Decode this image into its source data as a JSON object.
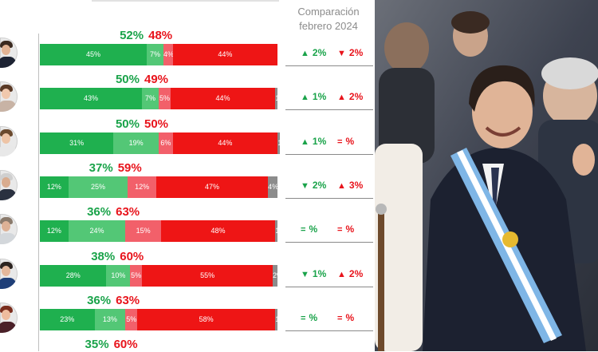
{
  "comparison_header": {
    "line1": "Comparación",
    "line2": "febrero 2024"
  },
  "colors": {
    "positive_dark": "#1fb04f",
    "positive_light": "#53c776",
    "negative_light": "#f2606a",
    "negative_dark": "#ee1515",
    "no_answer": "#8c8c8c",
    "green_text": "#1aa34a",
    "red_text": "#e8141c"
  },
  "chart_data": {
    "type": "bar",
    "orientation": "horizontal",
    "stacked": true,
    "xlim": [
      0,
      100
    ],
    "grid": false,
    "categories": [
      "",
      "",
      "",
      "",
      "",
      "",
      "",
      ""
    ],
    "segments": [
      {
        "key": "positive_dark",
        "values": [
          45,
          43,
          31,
          12,
          12,
          28,
          23,
          null
        ]
      },
      {
        "key": "positive_light",
        "values": [
          7,
          7,
          19,
          25,
          24,
          10,
          13,
          null
        ]
      },
      {
        "key": "negative_light",
        "values": [
          4,
          5,
          6,
          12,
          15,
          5,
          5,
          null
        ]
      },
      {
        "key": "negative_dark",
        "values": [
          44,
          44,
          44,
          47,
          48,
          55,
          58,
          null
        ]
      },
      {
        "key": "no_answer",
        "values": [
          0,
          1,
          1,
          4,
          1,
          2,
          1,
          null
        ]
      }
    ],
    "segment_label_suffixes": [
      [
        "%",
        "%",
        "%",
        "%",
        "%"
      ],
      [
        "%",
        "%",
        "%",
        "%",
        "1"
      ],
      [
        "%",
        "%",
        "%",
        "%",
        "1"
      ],
      [
        "%",
        "%",
        "%",
        "%",
        "%"
      ],
      [
        "%",
        "%",
        "%",
        "%",
        "1"
      ],
      [
        "%",
        "%",
        "%",
        "%",
        "%"
      ],
      [
        "%",
        "%",
        "%",
        "%",
        "1"
      ],
      [
        "",
        "",
        "",
        "",
        ""
      ]
    ],
    "positive_totals": [
      52,
      50,
      50,
      37,
      36,
      38,
      36,
      35
    ],
    "negative_totals": [
      48,
      49,
      50,
      59,
      63,
      60,
      63,
      60
    ],
    "comparison": [
      {
        "positive": {
          "dir": "up",
          "value": "2%"
        },
        "negative": {
          "dir": "down",
          "value": "2%"
        }
      },
      {
        "positive": {
          "dir": "up",
          "value": "1%"
        },
        "negative": {
          "dir": "up",
          "value": "2%"
        }
      },
      {
        "positive": {
          "dir": "up",
          "value": "1%"
        },
        "negative": {
          "dir": "equal",
          "value": "%"
        }
      },
      {
        "positive": {
          "dir": "down",
          "value": "2%"
        },
        "negative": {
          "dir": "up",
          "value": "3%"
        }
      },
      {
        "positive": {
          "dir": "equal",
          "value": "%"
        },
        "negative": {
          "dir": "equal",
          "value": "%"
        }
      },
      {
        "positive": {
          "dir": "down",
          "value": "1%"
        },
        "negative": {
          "dir": "up",
          "value": "2%"
        }
      },
      {
        "positive": {
          "dir": "equal",
          "value": "%"
        },
        "negative": {
          "dir": "equal",
          "value": "%"
        }
      }
    ]
  },
  "avatars": [
    {
      "name": "avatar-1",
      "skin": "#e2b394",
      "hair": "#3b2a20",
      "body": "#1d2333"
    },
    {
      "name": "avatar-2",
      "skin": "#f0c8ad",
      "hair": "#5a3a26",
      "body": "#c8b3a5"
    },
    {
      "name": "avatar-3",
      "skin": "#eec4a6",
      "hair": "#6b4a2e",
      "body": "#e8e8e8"
    },
    {
      "name": "avatar-4",
      "skin": "#d9ac8f",
      "hair": "#cfcfcf",
      "body": "#2a3140"
    },
    {
      "name": "avatar-5",
      "skin": "#ddb196",
      "hair": "#8a7a6c",
      "body": "#d3d7db"
    },
    {
      "name": "avatar-6",
      "skin": "#e3b79b",
      "hair": "#2c2420",
      "body": "#1f3f78"
    },
    {
      "name": "avatar-7",
      "skin": "#eebc9e",
      "hair": "#7a2e1e",
      "body": "#4a2028"
    }
  ]
}
